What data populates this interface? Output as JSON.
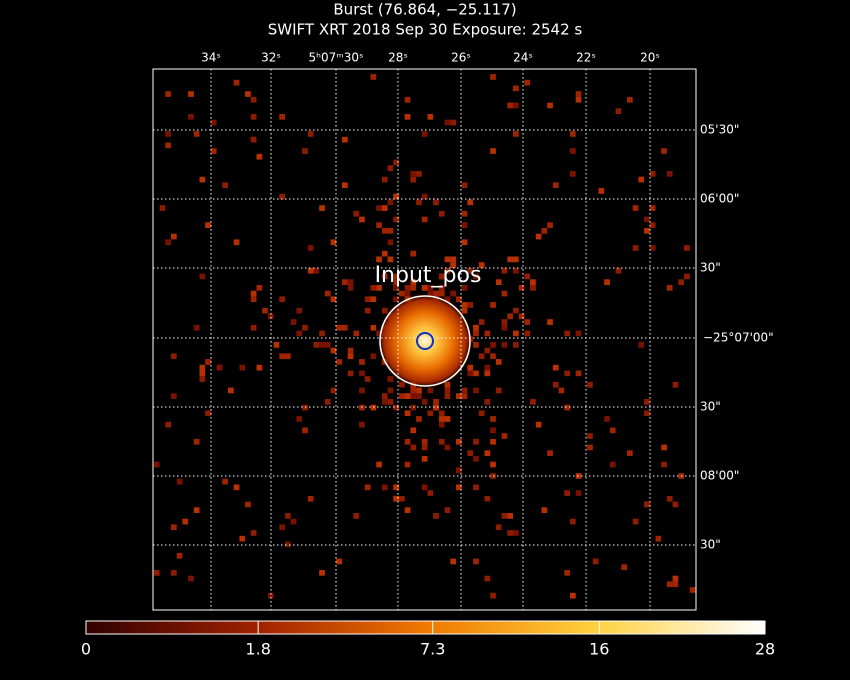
{
  "header": {
    "title": "Burst (76.864, −25.117)",
    "subtitle": "SWIFT XRT   2018 Sep 30    Exposure: 2542 s"
  },
  "image": {
    "ra_labels": [
      "34ˢ",
      "32ˢ",
      "5ʰ07ᵐ30ˢ",
      "28ˢ",
      "26ˢ",
      "24ˢ",
      "22ˢ",
      "20ˢ"
    ],
    "dec_labels": [
      "05'30\"",
      "06'00\"",
      "30\"",
      "−25°07'00\"",
      "30\"",
      "08'00\"",
      "30\""
    ],
    "source_label": "Input_pos"
  },
  "colorbar": {
    "scale": "sqrt",
    "ticks": [
      0,
      1.8,
      7.3,
      16,
      28
    ]
  }
}
